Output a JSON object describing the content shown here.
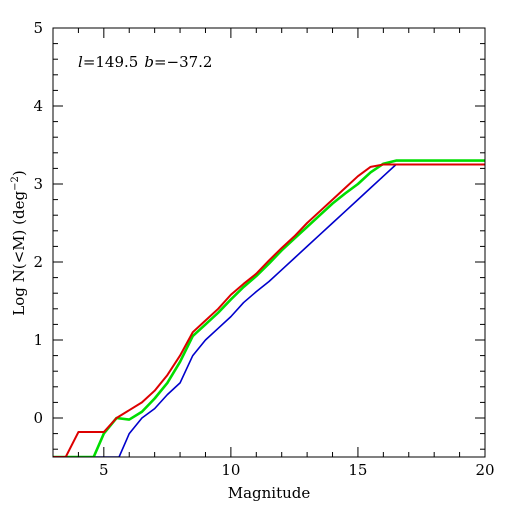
{
  "chart_data": {
    "type": "line",
    "title": "",
    "annotation": {
      "l_symbol": "l",
      "l_value": "=149.5",
      "b_symbol": "b",
      "b_value": "=−37.2"
    },
    "xlabel": "Magnitude",
    "ylabel": {
      "prefix": "Log N(<M) (deg",
      "superscript": "−2",
      "suffix": ")"
    },
    "xlim": [
      3,
      20
    ],
    "ylim": [
      -0.5,
      5
    ],
    "xticks_major": [
      5,
      10,
      15,
      20
    ],
    "xtick_labels": [
      "5",
      "10",
      "15",
      "20"
    ],
    "yticks_major": [
      0,
      1,
      2,
      3,
      4,
      5
    ],
    "ytick_labels": [
      "0",
      "1",
      "2",
      "3",
      "4",
      "5"
    ],
    "grid": false,
    "series": [
      {
        "color": "#0000cc",
        "width": 1.6,
        "x": [
          3.0,
          5.6,
          6.0,
          6.5,
          7.0,
          7.5,
          8.0,
          8.5,
          9.0,
          9.5,
          10.0,
          10.5,
          11.0,
          11.5,
          12.0,
          12.5,
          13.0,
          13.5,
          14.0,
          14.5,
          15.0,
          15.5,
          16.0,
          16.5,
          20.0
        ],
        "y": [
          -0.5,
          -0.5,
          -0.2,
          0.0,
          0.12,
          0.3,
          0.45,
          0.8,
          1.0,
          1.15,
          1.3,
          1.48,
          1.62,
          1.75,
          1.9,
          2.05,
          2.2,
          2.35,
          2.5,
          2.65,
          2.8,
          2.95,
          3.1,
          3.25,
          3.25
        ]
      },
      {
        "color": "#00dd00",
        "width": 2.6,
        "x": [
          3.0,
          4.6,
          5.0,
          5.5,
          6.0,
          6.5,
          7.0,
          7.5,
          8.0,
          8.5,
          9.0,
          9.5,
          10.0,
          10.5,
          11.0,
          11.5,
          12.0,
          12.5,
          13.0,
          13.5,
          14.0,
          14.5,
          15.0,
          15.5,
          16.0,
          16.5,
          20.0
        ],
        "y": [
          -0.5,
          -0.5,
          -0.2,
          0.0,
          -0.02,
          0.08,
          0.25,
          0.45,
          0.72,
          1.05,
          1.2,
          1.35,
          1.52,
          1.68,
          1.82,
          1.98,
          2.15,
          2.3,
          2.45,
          2.6,
          2.75,
          2.88,
          3.0,
          3.15,
          3.26,
          3.3,
          3.3
        ]
      },
      {
        "color": "#dd0000",
        "width": 2.0,
        "x": [
          3.0,
          3.5,
          4.0,
          5.0,
          5.5,
          6.0,
          6.5,
          7.0,
          7.5,
          8.0,
          8.5,
          9.0,
          9.5,
          10.0,
          10.5,
          11.0,
          11.5,
          12.0,
          12.5,
          13.0,
          13.5,
          14.0,
          14.5,
          15.0,
          15.5,
          16.0,
          20.0
        ],
        "y": [
          -0.5,
          -0.5,
          -0.18,
          -0.18,
          0.0,
          0.1,
          0.2,
          0.35,
          0.55,
          0.8,
          1.1,
          1.25,
          1.4,
          1.58,
          1.72,
          1.85,
          2.02,
          2.18,
          2.33,
          2.5,
          2.65,
          2.8,
          2.95,
          3.1,
          3.22,
          3.25,
          3.25
        ]
      }
    ]
  }
}
